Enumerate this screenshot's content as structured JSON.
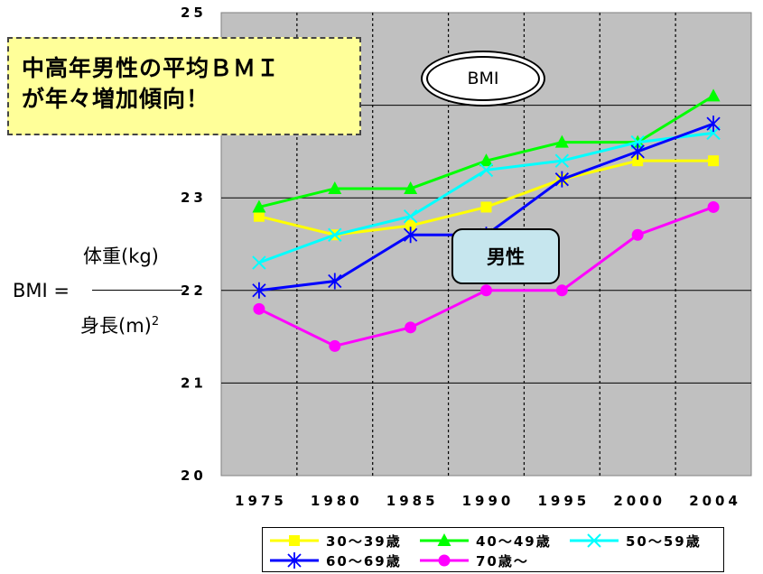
{
  "callout": {
    "line1": "中高年男性の平均ＢＭＩ",
    "line2": "が年々増加傾向！"
  },
  "badge_bmi": "BMI",
  "badge_sex": "男性",
  "formula": {
    "lhs": "BMI =",
    "numerator": "体重(kg)",
    "denominator": "身長(m)",
    "exponent": "2"
  },
  "chart_data": {
    "type": "line",
    "x": [
      "1975",
      "1980",
      "1985",
      "1990",
      "1995",
      "2000",
      "2004"
    ],
    "ylim": [
      20,
      25
    ],
    "yticks": [
      {
        "value": 20,
        "label": "20"
      },
      {
        "value": 21,
        "label": "21"
      },
      {
        "value": 22,
        "label": "22"
      },
      {
        "value": 23,
        "label": "23"
      },
      {
        "value": 25,
        "label": "25"
      }
    ],
    "grid": {
      "horizontal": true,
      "vertical_dashed": true
    },
    "legend_position": "bottom",
    "series": [
      {
        "name": "30～39歳",
        "color": "#ffff00",
        "marker": "square",
        "values": [
          22.8,
          22.6,
          22.7,
          22.9,
          23.2,
          23.4,
          23.4
        ]
      },
      {
        "name": "40～49歳",
        "color": "#00ff00",
        "marker": "triangle",
        "values": [
          22.9,
          23.1,
          23.1,
          23.4,
          23.6,
          23.6,
          24.1
        ]
      },
      {
        "name": "50～59歳",
        "color": "#00ffff",
        "marker": "x",
        "values": [
          22.3,
          22.6,
          22.8,
          23.3,
          23.4,
          23.6,
          23.7
        ]
      },
      {
        "name": "60～69歳",
        "color": "#0000ff",
        "marker": "asterisk",
        "values": [
          22.0,
          22.1,
          22.6,
          22.6,
          23.2,
          23.5,
          23.8
        ]
      },
      {
        "name": "70歳～",
        "color": "#ff00ff",
        "marker": "circle",
        "values": [
          21.8,
          21.4,
          21.6,
          22.0,
          22.0,
          22.6,
          22.9
        ]
      }
    ]
  }
}
